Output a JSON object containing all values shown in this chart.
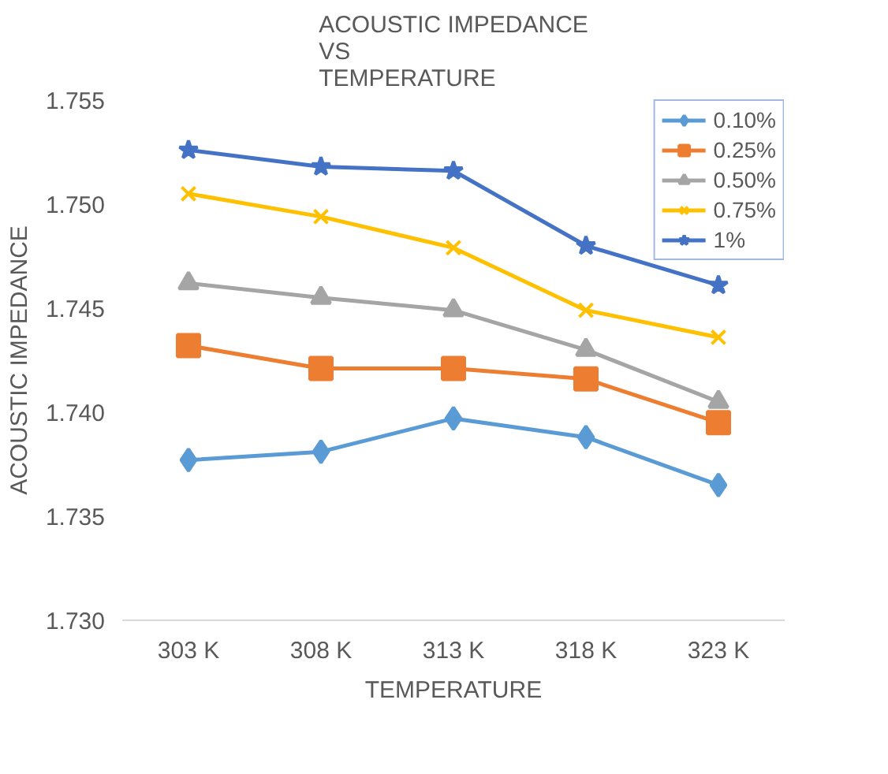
{
  "chart_data": {
    "type": "line",
    "title": "ACOUSTIC IMPEDANCE\nVS\nTEMPERATURE",
    "xlabel": "TEMPERATURE",
    "ylabel": "ACOUSTIC IMPEDANCE",
    "categories": [
      "303 K",
      "308 K",
      "313 K",
      "318 K",
      "323 K"
    ],
    "series": [
      {
        "name": "0.10%",
        "color": "#5b9bd5",
        "marker": "diamond",
        "values": [
          1.7377,
          1.7381,
          1.7397,
          1.7388,
          1.7365
        ]
      },
      {
        "name": "0.25%",
        "color": "#ed7d31",
        "marker": "square",
        "values": [
          1.7432,
          1.7421,
          1.7421,
          1.7416,
          1.7395
        ]
      },
      {
        "name": "0.50%",
        "color": "#a5a5a5",
        "marker": "triangle",
        "values": [
          1.7462,
          1.7455,
          1.7449,
          1.743,
          1.7405
        ]
      },
      {
        "name": "0.75%",
        "color": "#ffc000",
        "marker": "cross",
        "values": [
          1.7505,
          1.7494,
          1.7479,
          1.7449,
          1.7436
        ]
      },
      {
        "name": "1%",
        "color": "#4472c4",
        "marker": "star",
        "values": [
          1.7526,
          1.7518,
          1.7516,
          1.748,
          1.7461
        ]
      }
    ],
    "ylim": [
      1.73,
      1.755
    ],
    "yticks": [
      {
        "value": 1.73,
        "label": "1.730"
      },
      {
        "value": 1.735,
        "label": "1.735"
      },
      {
        "value": 1.74,
        "label": "1.740"
      },
      {
        "value": 1.745,
        "label": "1.745"
      },
      {
        "value": 1.75,
        "label": "1.750"
      },
      {
        "value": 1.755,
        "label": "1.755"
      }
    ],
    "legend": "top right",
    "grid": false,
    "line_style": "solid"
  }
}
